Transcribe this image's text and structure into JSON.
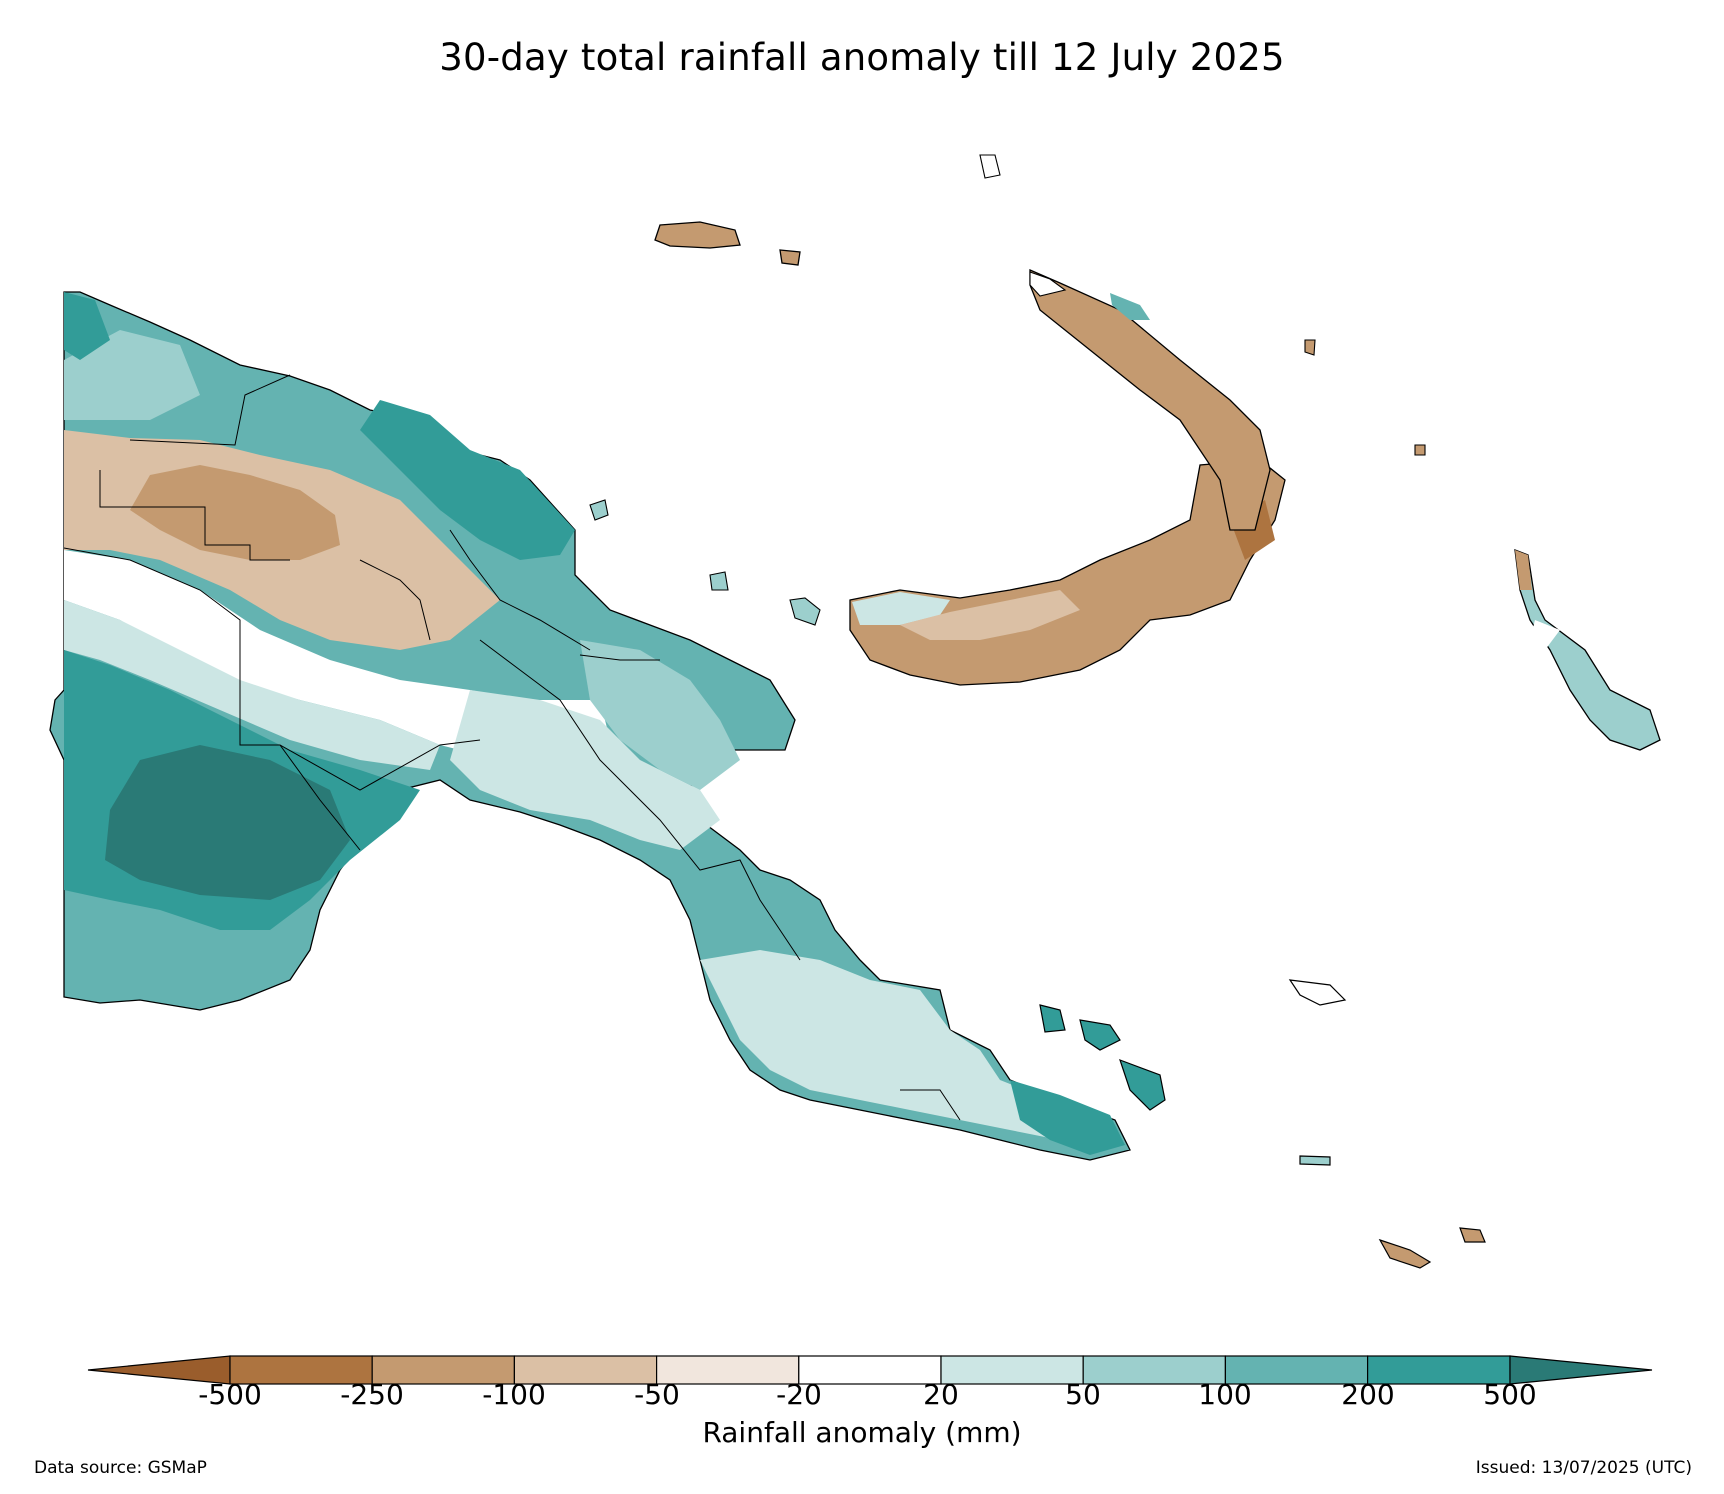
{
  "title": "30-day total rainfall anomaly till 12 July 2025",
  "colorbar": {
    "title": "Rainfall anomaly (mm)",
    "ticks": [
      "-500",
      "-250",
      "-100",
      "-50",
      "-20",
      "20",
      "50",
      "100",
      "200",
      "500"
    ],
    "colors": [
      "#9a5d2c",
      "#ad7440",
      "#c49a70",
      "#dbc0a5",
      "#f1e6dd",
      "#ffffff",
      "#cce6e4",
      "#9ccfcd",
      "#64b3b1",
      "#329c98",
      "#2a7a76"
    ]
  },
  "footer": {
    "source": "Data source: GSMaP",
    "issued": "Issued: 13/07/2025 (UTC)"
  }
}
